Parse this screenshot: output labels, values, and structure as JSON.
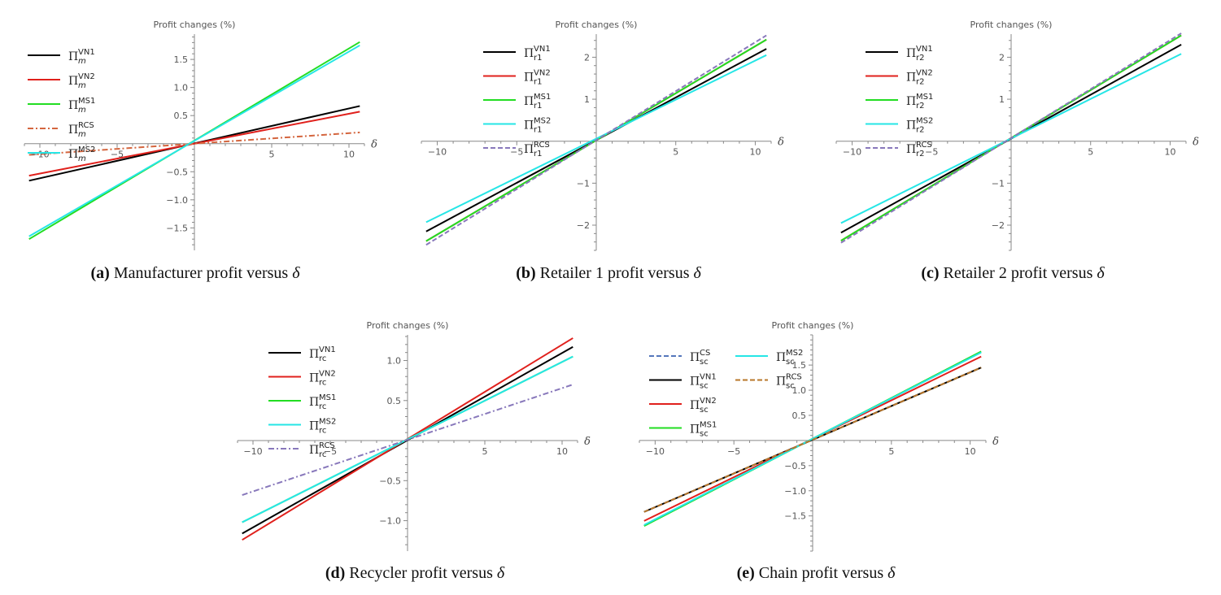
{
  "chart_data": [
    {
      "type": "line",
      "title": "Profit changes (%)",
      "xlabel": "δ",
      "xlim": [
        -11,
        11
      ],
      "ylim": [
        -1.9,
        1.95
      ],
      "xticks": [
        -10,
        -5,
        5,
        10
      ],
      "xtick_labels": [
        "−10",
        "−5",
        "5",
        "10"
      ],
      "yticks": [
        -1.5,
        -1.0,
        -0.5,
        0.5,
        1.0,
        1.5
      ],
      "ytick_labels": [
        "−1.5",
        "−1.0",
        "−0.5",
        "0.5",
        "1.0",
        "1.5"
      ],
      "legend_position": "top-left",
      "caption": {
        "letter": "(a)",
        "text": "Manufacturer profit versus",
        "symbol": "δ"
      },
      "series": [
        {
          "sup": "VN1",
          "sub": "m",
          "color": "#000000",
          "dash": "solid",
          "x": [
            -10.7,
            10.7
          ],
          "y": [
            -0.66,
            0.67
          ]
        },
        {
          "sup": "VN2",
          "sub": "m",
          "color": "#e0201c",
          "dash": "solid",
          "x": [
            -10.7,
            10.7
          ],
          "y": [
            -0.57,
            0.57
          ]
        },
        {
          "sup": "MS1",
          "sub": "m",
          "color": "#22dd22",
          "dash": "solid",
          "x": [
            -10.7,
            10.7
          ],
          "y": [
            -1.7,
            1.81
          ]
        },
        {
          "sup": "RCS",
          "sub": "m",
          "color": "#d4663f",
          "dash": "dashdot",
          "x": [
            -10.7,
            10.7
          ],
          "y": [
            -0.2,
            0.2
          ]
        },
        {
          "sup": "MS2",
          "sub": "m",
          "color": "#26e6e6",
          "dash": "solid",
          "x": [
            -10.7,
            10.7
          ],
          "y": [
            -1.65,
            1.75
          ]
        }
      ]
    },
    {
      "type": "line",
      "title": "Profit changes (%)",
      "xlabel": "δ",
      "xlim": [
        -11,
        11
      ],
      "ylim": [
        -2.6,
        2.55
      ],
      "xticks": [
        -10,
        -5,
        5,
        10
      ],
      "xtick_labels": [
        "−10",
        "−5",
        "5",
        "10"
      ],
      "yticks": [
        -2,
        -1,
        1,
        2
      ],
      "ytick_labels": [
        "−2",
        "−1",
        "1",
        "2"
      ],
      "legend_position": "top-left",
      "caption": {
        "letter": "(b)",
        "text": "Retailer 1 profit versus",
        "symbol": "δ"
      },
      "series": [
        {
          "sup": "VN1",
          "sub": "r1",
          "color": "#000000",
          "dash": "solid",
          "x": [
            -10.7,
            10.7
          ],
          "y": [
            -2.15,
            2.2
          ]
        },
        {
          "sup": "VN2",
          "sub": "r1",
          "color": "#e0201c",
          "dash": "solid",
          "x": [
            -10.7,
            10.7
          ],
          "y": [
            -2.38,
            2.42
          ]
        },
        {
          "sup": "MS1",
          "sub": "r1",
          "color": "#22dd22",
          "dash": "solid",
          "x": [
            -10.7,
            10.7
          ],
          "y": [
            -2.38,
            2.42
          ]
        },
        {
          "sup": "MS2",
          "sub": "r1",
          "color": "#26e6e6",
          "dash": "solid",
          "x": [
            -10.7,
            10.7
          ],
          "y": [
            -1.93,
            2.05
          ]
        },
        {
          "sup": "RCS",
          "sub": "r1",
          "color": "#8878bb",
          "dash": "dashed",
          "x": [
            -10.7,
            10.7
          ],
          "y": [
            -2.47,
            2.52
          ]
        }
      ]
    },
    {
      "type": "line",
      "title": "Profit changes (%)",
      "xlabel": "δ",
      "xlim": [
        -11,
        11
      ],
      "ylim": [
        -2.6,
        2.55
      ],
      "xticks": [
        -10,
        -5,
        5,
        10
      ],
      "xtick_labels": [
        "−10",
        "−5",
        "5",
        "10"
      ],
      "yticks": [
        -2,
        -1,
        1,
        2
      ],
      "ytick_labels": [
        "−2",
        "−1",
        "1",
        "2"
      ],
      "legend_position": "top-left",
      "caption": {
        "letter": "(c)",
        "text": "Retailer 2 profit versus",
        "symbol": "δ"
      },
      "series": [
        {
          "sup": "VN1",
          "sub": "r2",
          "color": "#000000",
          "dash": "solid",
          "x": [
            -10.7,
            10.7
          ],
          "y": [
            -2.18,
            2.3
          ]
        },
        {
          "sup": "VN2",
          "sub": "r2",
          "color": "#e0201c",
          "dash": "solid",
          "x": [
            -10.7,
            10.7
          ],
          "y": [
            -2.37,
            2.52
          ]
        },
        {
          "sup": "MS1",
          "sub": "r2",
          "color": "#22dd22",
          "dash": "solid",
          "x": [
            -10.7,
            10.7
          ],
          "y": [
            -2.37,
            2.52
          ]
        },
        {
          "sup": "MS2",
          "sub": "r2",
          "color": "#26e6e6",
          "dash": "solid",
          "x": [
            -10.7,
            10.7
          ],
          "y": [
            -1.95,
            2.08
          ]
        },
        {
          "sup": "RCS",
          "sub": "r2",
          "color": "#8878bb",
          "dash": "dashed",
          "x": [
            -10.7,
            10.7
          ],
          "y": [
            -2.42,
            2.57
          ]
        }
      ]
    },
    {
      "type": "line",
      "title": "Profit changes (%)",
      "xlabel": "δ",
      "xlim": [
        -11,
        11
      ],
      "ylim": [
        -1.38,
        1.32
      ],
      "xticks": [
        -10,
        -5,
        5,
        10
      ],
      "xtick_labels": [
        "−10",
        "−5",
        "5",
        "10"
      ],
      "yticks": [
        -1.0,
        -0.5,
        0.5,
        1.0
      ],
      "ytick_labels": [
        "−1.0",
        "−0.5",
        "0.5",
        "1.0"
      ],
      "legend_position": "top-left",
      "caption": {
        "letter": "(d)",
        "text": "Recycler profit versus",
        "symbol": "δ"
      },
      "series": [
        {
          "sup": "VN1",
          "sub": "rc",
          "color": "#000000",
          "dash": "solid",
          "x": [
            -10.7,
            10.7
          ],
          "y": [
            -1.16,
            1.17
          ]
        },
        {
          "sup": "VN2",
          "sub": "rc",
          "color": "#e0201c",
          "dash": "solid",
          "x": [
            -10.7,
            10.7
          ],
          "y": [
            -1.24,
            1.28
          ]
        },
        {
          "sup": "MS1",
          "sub": "rc",
          "color": "#22dd22",
          "dash": "solid",
          "x": [
            -10.7,
            10.7
          ],
          "y": [
            -1.02,
            1.05
          ]
        },
        {
          "sup": "MS2",
          "sub": "rc",
          "color": "#26e6e6",
          "dash": "solid",
          "x": [
            -10.7,
            10.7
          ],
          "y": [
            -1.02,
            1.05
          ]
        },
        {
          "sup": "RCS",
          "sub": "rc",
          "color": "#8878bb",
          "dash": "dashdot",
          "x": [
            -10.7,
            10.7
          ],
          "y": [
            -0.68,
            0.7
          ]
        }
      ]
    },
    {
      "type": "line",
      "title": "Profit changes (%)",
      "xlabel": "δ",
      "xlim": [
        -11,
        11
      ],
      "ylim": [
        -2.2,
        2.1
      ],
      "xticks": [
        -10,
        -5,
        5,
        10
      ],
      "xtick_labels": [
        "−10",
        "−5",
        "5",
        "10"
      ],
      "yticks": [
        -1.5,
        -1.0,
        -0.5,
        0.5,
        1.0,
        1.5
      ],
      "ytick_labels": [
        "−1.5",
        "−1.0",
        "−0.5",
        "0.5",
        "1.0",
        "1.5"
      ],
      "legend_position": "top-left",
      "caption": {
        "letter": "(e)",
        "text": "Chain profit versus",
        "symbol": "δ"
      },
      "series": [
        {
          "sup": "CS",
          "sub": "sc",
          "color": "#5577bb",
          "dash": "dashed",
          "x": [
            -10.7,
            10.7
          ],
          "y": [
            -1.42,
            1.45
          ]
        },
        {
          "sup": "VN1",
          "sub": "sc",
          "color": "#000000",
          "dash": "solid",
          "x": [
            -10.7,
            10.7
          ],
          "y": [
            -1.42,
            1.45
          ]
        },
        {
          "sup": "VN2",
          "sub": "sc",
          "color": "#e0201c",
          "dash": "solid",
          "x": [
            -10.7,
            10.7
          ],
          "y": [
            -1.6,
            1.67
          ]
        },
        {
          "sup": "MS1",
          "sub": "sc",
          "color": "#22dd22",
          "dash": "solid",
          "x": [
            -10.7,
            10.7
          ],
          "y": [
            -1.7,
            1.77
          ]
        },
        {
          "sup": "MS2",
          "sub": "sc",
          "color": "#26e6e6",
          "dash": "solid",
          "x": [
            -10.7,
            10.7
          ],
          "y": [
            -1.68,
            1.75
          ]
        },
        {
          "sup": "RCS",
          "sub": "sc",
          "color": "#b8772a",
          "dash": "dashed",
          "x": [
            -10.7,
            10.7
          ],
          "y": [
            -1.42,
            1.45
          ]
        }
      ]
    }
  ]
}
